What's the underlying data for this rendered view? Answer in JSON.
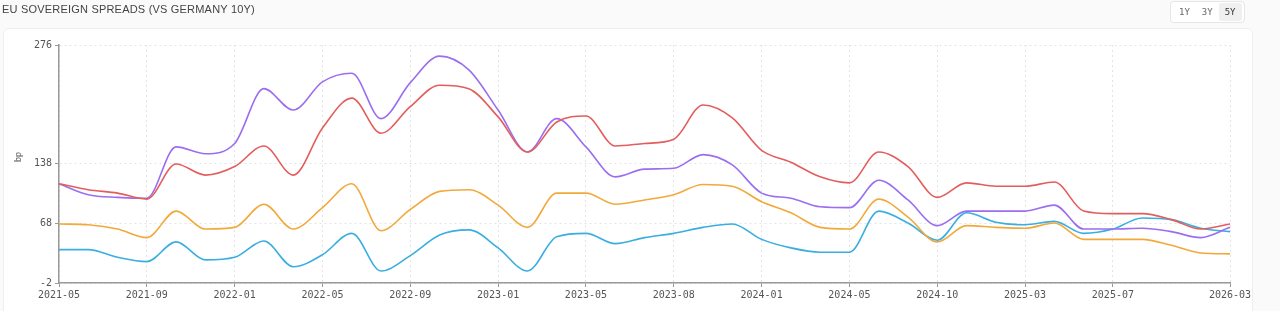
{
  "chart_data": {
    "type": "line",
    "title": "EU SOVEREIGN SPREADS (VS GERMANY 10Y)",
    "ylabel": "bp",
    "annotations": [
      "1Y",
      "3Y",
      "5Y"
    ],
    "categories": [
      "2021-05",
      null,
      null,
      "2021-09",
      null,
      null,
      "2022-01",
      null,
      null,
      "2022-05",
      null,
      null,
      "2022-09",
      null,
      null,
      "2023-01",
      null,
      null,
      "2023-05",
      null,
      null,
      "2023-08",
      null,
      null,
      "2024-01",
      null,
      null,
      "2024-05",
      null,
      null,
      "2024-10",
      null,
      null,
      "2025-03",
      null,
      null,
      "2025-07",
      null,
      null,
      null,
      "2026-03"
    ],
    "series": [
      {
        "color": "#e35d5d",
        "values": [
          114,
          107,
          103,
          96,
          137,
          124,
          134,
          158,
          124,
          179,
          214,
          173,
          204,
          229,
          225,
          192,
          151,
          186,
          193,
          158,
          161,
          166,
          206,
          191,
          153,
          139,
          122,
          115,
          151,
          134,
          98,
          115,
          111,
          111,
          116,
          82,
          79,
          79,
          72,
          61,
          67
        ]
      },
      {
        "color": "#9b6ef0",
        "values": [
          114,
          101,
          98,
          97,
          157,
          149,
          161,
          225,
          200,
          233,
          243,
          190,
          232,
          263,
          247,
          200,
          151,
          190,
          157,
          122,
          131,
          132,
          148,
          136,
          103,
          97,
          87,
          86,
          118,
          95,
          65,
          82,
          82,
          82,
          89,
          61,
          61,
          62,
          58,
          51,
          63
        ]
      },
      {
        "color": "#f2a93b",
        "values": [
          67,
          66,
          61,
          51,
          82,
          61,
          63,
          90,
          61,
          86,
          114,
          59,
          84,
          105,
          107,
          89,
          63,
          103,
          103,
          90,
          95,
          101,
          113,
          111,
          93,
          80,
          63,
          61,
          96,
          75,
          46,
          65,
          63,
          62,
          68,
          49,
          49,
          49,
          42,
          33,
          32
        ]
      },
      {
        "color": "#3aaee0",
        "values": [
          37,
          37,
          28,
          23,
          46,
          25,
          28,
          47,
          17,
          31,
          56,
          12,
          30,
          54,
          60,
          39,
          12,
          52,
          56,
          44,
          51,
          56,
          63,
          67,
          49,
          39,
          34,
          34,
          82,
          68,
          48,
          80,
          69,
          66,
          70,
          56,
          61,
          74,
          72,
          62,
          58
        ]
      }
    ],
    "ylim": [
      -2,
      276
    ],
    "yticks": [
      -2,
      68,
      138,
      276
    ],
    "grid": true,
    "marker": "none",
    "line_style": "solid"
  }
}
